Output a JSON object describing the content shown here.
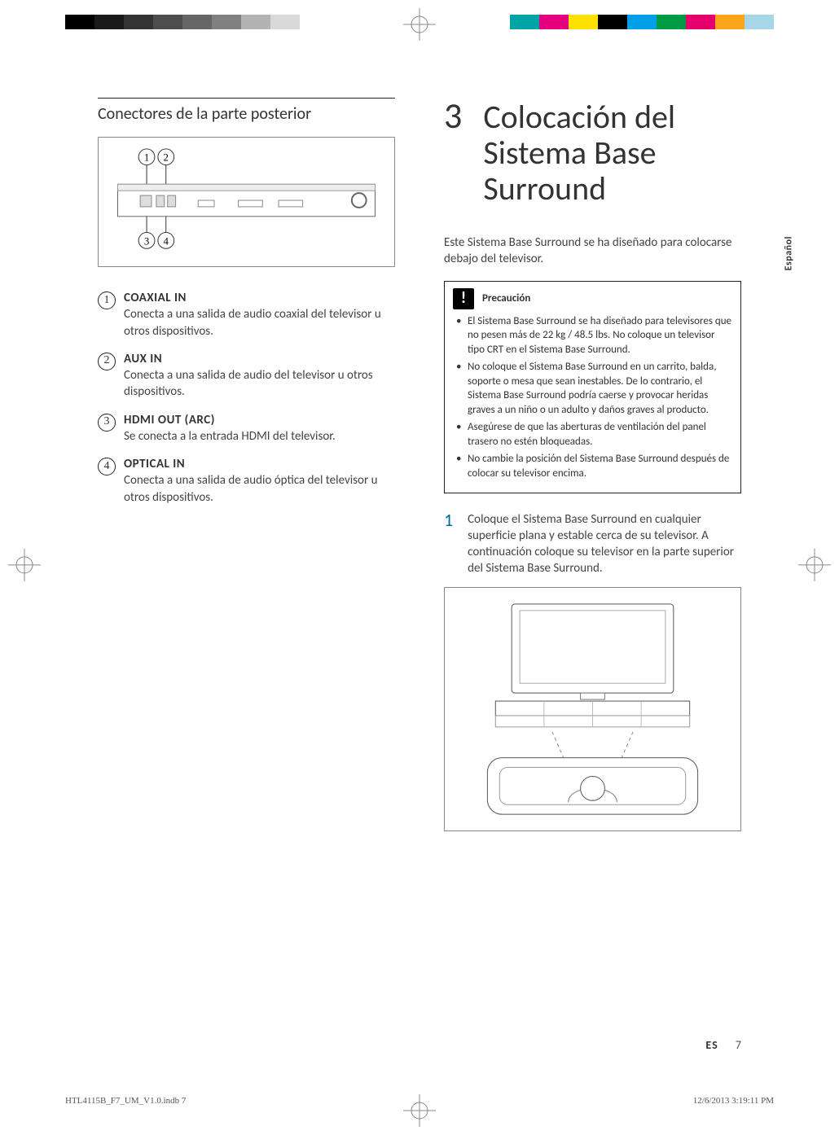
{
  "registration": {
    "left_grays": [
      "#000000",
      "#1a1a1a",
      "#333333",
      "#4d4d4d",
      "#666666",
      "#808080",
      "#b3b3b3",
      "#d9d9d9"
    ],
    "right_colors": [
      "#00a4a7",
      "#e4007f",
      "#ffe100",
      "#000000",
      "#00a0e9",
      "#009944",
      "#e5006e",
      "#faa51a",
      "#a6d7e8"
    ]
  },
  "left_column": {
    "subheading": "Conectores de la parte posterior",
    "connectors": [
      {
        "num": "1",
        "title": "COAXIAL IN",
        "desc": "Conecta a una salida de audio coaxial del televisor u otros dispositivos."
      },
      {
        "num": "2",
        "title": "AUX IN",
        "desc": "Conecta a una salida de audio del televisor u otros dispositivos."
      },
      {
        "num": "3",
        "title": "HDMI OUT (ARC)",
        "desc": "Se conecta a la entrada HDMI del televisor."
      },
      {
        "num": "4",
        "title": "OPTICAL IN",
        "desc": "Conecta a una salida de audio óptica del televisor u otros dispositivos."
      }
    ]
  },
  "right_column": {
    "chapter_num": "3",
    "chapter_title": "Colocación del Sistema Base Surround",
    "intro": "Este Sistema Base Surround se ha diseñado para colocarse debajo del televisor.",
    "caution_label": "Precaución",
    "caution_items": [
      "El Sistema Base Surround se ha diseñado para televisores que no pesen más de 22 kg / 48.5 lbs. No coloque un televisor tipo CRT en el Sistema Base Surround.",
      "No coloque el Sistema Base Surround en un carrito, balda, soporte o mesa que sean inestables. De lo contrario, el Sistema Base Surround podría caerse y provocar heridas graves a un niño o un adulto y daños graves al producto.",
      "Asegúrese de que las aberturas de ventilación del panel trasero no estén bloqueadas.",
      "No cambie la posición del Sistema Base Surround después de colocar su televisor encima."
    ],
    "step_num": "1",
    "step_text": "Coloque el Sistema Base Surround en cualquier superficie plana y estable cerca de su televisor. A continuación coloque su televisor en la parte superior del Sistema Base Surround."
  },
  "lang_tab": "Español",
  "footer": {
    "lang_code": "ES",
    "page_num": "7"
  },
  "print_footer": {
    "file": "HTL4115B_F7_UM_V1.0.indb   7",
    "timestamp": "12/6/2013   3:19:11 PM"
  }
}
